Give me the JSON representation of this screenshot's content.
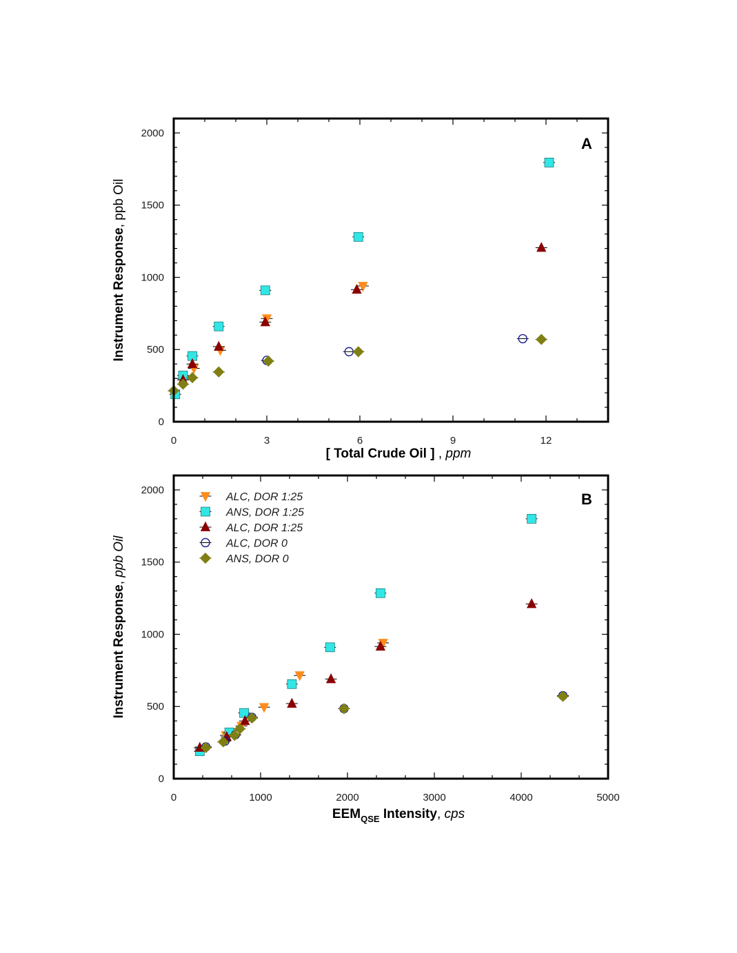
{
  "series_styles": [
    {
      "name": "ALC, DOR 1:25",
      "marker": "triangle-down",
      "color": "#ff8c1a",
      "filled": true
    },
    {
      "name": "ANS, DOR 1:25",
      "marker": "square",
      "color": "#33e6e6",
      "filled": true
    },
    {
      "name": "ALC, DOR 1:25",
      "marker": "triangle-up",
      "color": "#8b0000",
      "filled": true
    },
    {
      "name": "ALC, DOR 0",
      "marker": "circle",
      "color": "#1c1c8c",
      "filled": false
    },
    {
      "name": "ANS, DOR 0",
      "marker": "diamond",
      "color": "#7f7f14",
      "filled": true
    }
  ],
  "chart_data": [
    {
      "type": "scatter",
      "panel": "A",
      "ylabel": {
        "main": "Instrument Response",
        "sep": ", ",
        "unit": "ppb Oil"
      },
      "xlabel": {
        "main": "[ Total Crude Oil ]",
        "sep": " , ",
        "unit": "ppm"
      },
      "xlim": [
        0,
        14
      ],
      "ylim": [
        0,
        2100
      ],
      "x_ticks": [
        0,
        3,
        6,
        9,
        12
      ],
      "x_tick_labels": [
        "0",
        "3",
        "6",
        "9",
        "12"
      ],
      "y_ticks": [
        0,
        500,
        1000,
        1500,
        2000
      ],
      "y_tick_labels": [
        "0",
        "500",
        "1000",
        "1500",
        "2000"
      ],
      "legend": false,
      "series": [
        {
          "points": [
            [
              0.3,
              300
            ],
            [
              0.65,
              370
            ],
            [
              1.5,
              495
            ],
            [
              3.0,
              715
            ],
            [
              6.1,
              940
            ]
          ]
        },
        {
          "points": [
            [
              0.05,
              190
            ],
            [
              0.3,
              320
            ],
            [
              0.6,
              455
            ],
            [
              1.45,
              660
            ],
            [
              2.95,
              910
            ],
            [
              5.95,
              1280
            ],
            [
              12.1,
              1795
            ]
          ]
        },
        {
          "points": [
            [
              0.3,
              290
            ],
            [
              0.6,
              400
            ],
            [
              1.45,
              520
            ],
            [
              2.95,
              690
            ],
            [
              5.9,
              915
            ],
            [
              11.85,
              1205
            ]
          ]
        },
        {
          "points": [
            [
              3.0,
              425
            ],
            [
              5.65,
              485
            ],
            [
              11.25,
              575
            ]
          ]
        },
        {
          "points": [
            [
              0.0,
              215
            ],
            [
              0.3,
              260
            ],
            [
              0.6,
              305
            ],
            [
              1.45,
              345
            ],
            [
              3.05,
              420
            ],
            [
              5.95,
              485
            ],
            [
              11.85,
              570
            ]
          ]
        }
      ]
    },
    {
      "type": "scatter",
      "panel": "B",
      "ylabel": {
        "main": "Instrument Response",
        "sep": ", ",
        "unit": "ppb Oil"
      },
      "xlabel": {
        "main": "EEM",
        "sub": "QSE",
        "rest": " Intensity",
        "sep": ", ",
        "unit": "cps"
      },
      "xlim": [
        0,
        5000
      ],
      "ylim": [
        0,
        2100
      ],
      "x_ticks": [
        0,
        1000,
        2000,
        3000,
        4000,
        5000
      ],
      "x_tick_labels": [
        "0",
        "1000",
        "2000",
        "3000",
        "4000",
        "5000"
      ],
      "y_ticks": [
        0,
        500,
        1000,
        1500,
        2000
      ],
      "y_tick_labels": [
        "0",
        "500",
        "1000",
        "1500",
        "2000"
      ],
      "legend": true,
      "legend_position": "top-left",
      "series": [
        {
          "points": [
            [
              600,
              300
            ],
            [
              780,
              365
            ],
            [
              1040,
              495
            ],
            [
              1450,
              715
            ],
            [
              2410,
              940
            ]
          ]
        },
        {
          "points": [
            [
              300,
              190
            ],
            [
              640,
              320
            ],
            [
              810,
              455
            ],
            [
              1360,
              655
            ],
            [
              1800,
              910
            ],
            [
              2380,
              1285
            ],
            [
              4120,
              1800
            ]
          ]
        },
        {
          "points": [
            [
              300,
              215
            ],
            [
              610,
              290
            ],
            [
              820,
              400
            ],
            [
              1360,
              520
            ],
            [
              1810,
              690
            ],
            [
              2380,
              915
            ],
            [
              4120,
              1210
            ]
          ]
        },
        {
          "points": [
            [
              370,
              220
            ],
            [
              590,
              260
            ],
            [
              710,
              305
            ],
            [
              900,
              425
            ],
            [
              1960,
              485
            ],
            [
              4480,
              575
            ]
          ]
        },
        {
          "points": [
            [
              370,
              215
            ],
            [
              570,
              255
            ],
            [
              700,
              300
            ],
            [
              760,
              345
            ],
            [
              900,
              420
            ],
            [
              1960,
              485
            ],
            [
              4480,
              570
            ]
          ]
        }
      ]
    }
  ]
}
